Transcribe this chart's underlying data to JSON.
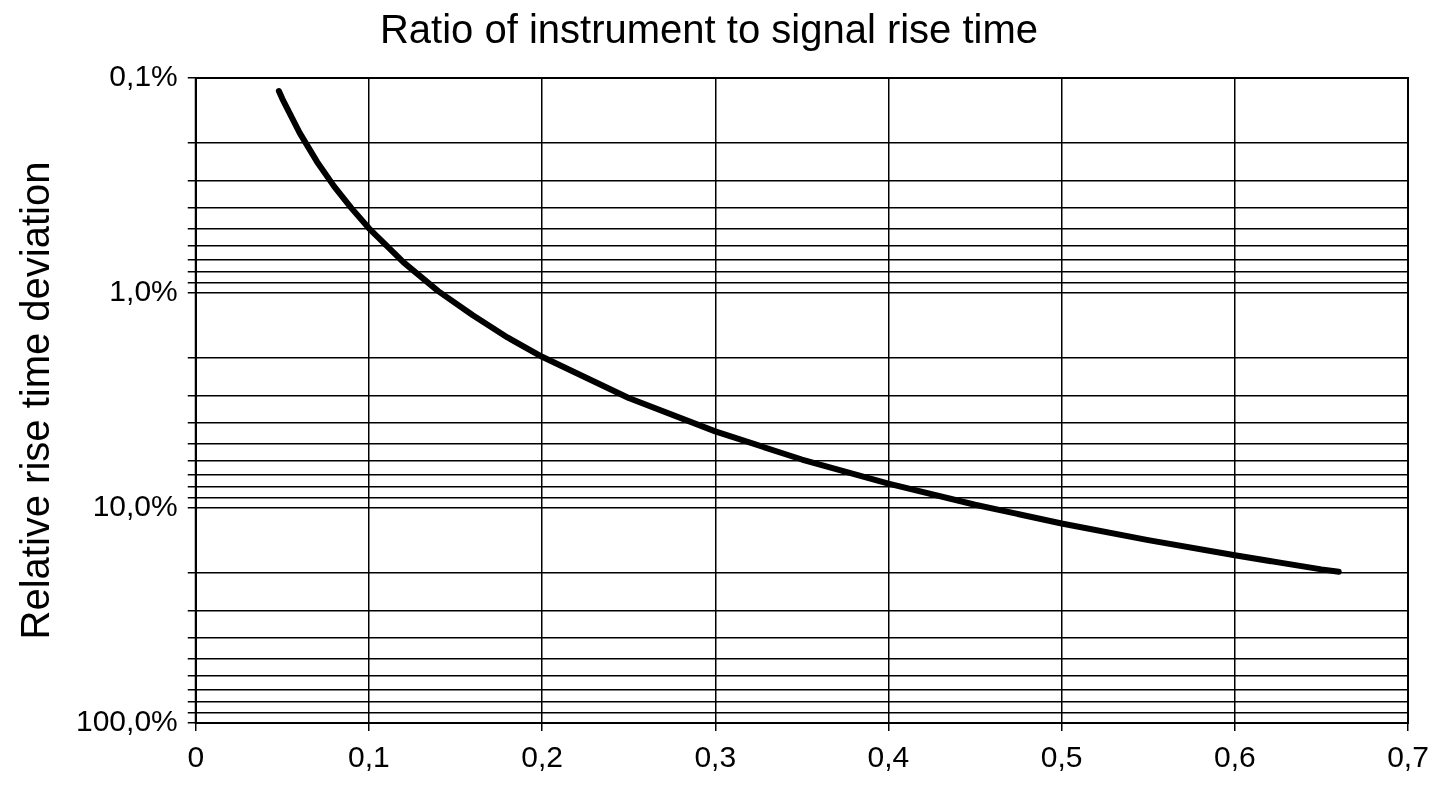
{
  "chart_data": {
    "type": "line",
    "title": "Ratio of instrument to signal rise time",
    "ylabel": "Relative rise time deviation",
    "x": [
      0.048,
      0.05,
      0.06,
      0.07,
      0.08,
      0.09,
      0.1,
      0.12,
      0.14,
      0.16,
      0.18,
      0.2,
      0.25,
      0.3,
      0.35,
      0.4,
      0.45,
      0.5,
      0.55,
      0.6,
      0.65,
      0.66
    ],
    "series": [
      {
        "color": "#000000",
        "values": [
          0.115,
          0.125,
          0.18,
          0.245,
          0.32,
          0.404,
          0.5,
          0.72,
          0.98,
          1.27,
          1.61,
          1.98,
          3.08,
          4.4,
          5.95,
          7.7,
          9.66,
          11.8,
          14.1,
          16.6,
          19.3,
          19.8
        ]
      }
    ],
    "xlim": [
      0,
      0.7
    ],
    "xticks": [
      0,
      {
        "value": 0.1,
        "label": "0,1"
      },
      {
        "value": 0.2,
        "label": "0,2"
      },
      {
        "value": 0.3,
        "label": "0,3"
      },
      {
        "value": 0.4,
        "label": "0,4"
      },
      {
        "value": 0.5,
        "label": "0,5"
      },
      {
        "value": 0.6,
        "label": "0,6"
      },
      {
        "value": 0.7,
        "label": "0,7"
      }
    ],
    "log": "y",
    "ylim": [
      100,
      0.1
    ],
    "yticks": [
      {
        "value": 0.1,
        "label": "0,1%"
      },
      {
        "value": 0.2,
        "label": null
      },
      {
        "value": 0.3,
        "label": null
      },
      {
        "value": 0.4,
        "label": null
      },
      {
        "value": 0.5,
        "label": null
      },
      {
        "value": 0.6,
        "label": null
      },
      {
        "value": 0.7,
        "label": null
      },
      {
        "value": 0.8,
        "label": null
      },
      {
        "value": 0.9,
        "label": null
      },
      {
        "value": 1,
        "label": "1,0%"
      },
      {
        "value": 2,
        "label": null
      },
      {
        "value": 3,
        "label": null
      },
      {
        "value": 4,
        "label": null
      },
      {
        "value": 5,
        "label": null
      },
      {
        "value": 6,
        "label": null
      },
      {
        "value": 7,
        "label": null
      },
      {
        "value": 8,
        "label": null
      },
      {
        "value": 9,
        "label": null
      },
      {
        "value": 10,
        "label": "10,0%"
      },
      {
        "value": 20,
        "label": null
      },
      {
        "value": 30,
        "label": null
      },
      {
        "value": 40,
        "label": null
      },
      {
        "value": 50,
        "label": null
      },
      {
        "value": 60,
        "label": null
      },
      {
        "value": 70,
        "label": null
      },
      {
        "value": 80,
        "label": null
      },
      {
        "value": 90,
        "label": null
      },
      {
        "value": 100,
        "label": "100,0%"
      }
    ],
    "grid": true,
    "legend": false,
    "marker": "none",
    "line_style": "solid"
  }
}
